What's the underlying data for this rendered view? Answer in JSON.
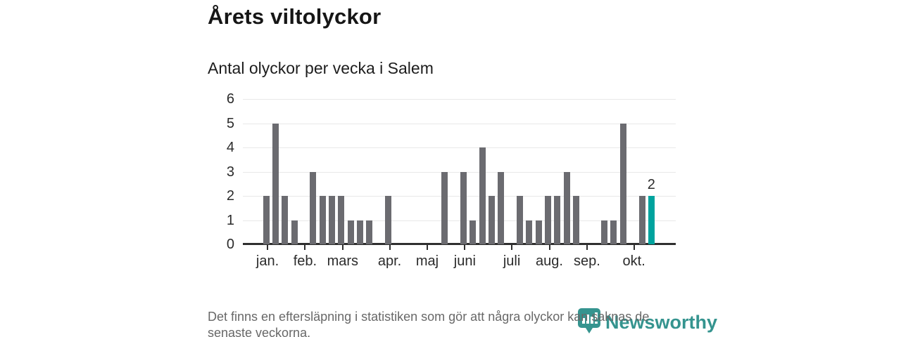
{
  "header": {
    "title": "Årets viltolyckor",
    "subtitle": "Antal olyckor per vecka i Salem"
  },
  "chart_data": {
    "type": "bar",
    "title": "Årets viltolyckor",
    "subtitle": "Antal olyckor per vecka i Salem",
    "x_unit": "vecka",
    "values": [
      2,
      5,
      2,
      1,
      0,
      3,
      2,
      2,
      2,
      1,
      1,
      1,
      0,
      2,
      0,
      0,
      0,
      0,
      0,
      3,
      0,
      3,
      1,
      4,
      2,
      3,
      0,
      2,
      1,
      1,
      2,
      2,
      3,
      2,
      0,
      0,
      1,
      1,
      5,
      0,
      2,
      2
    ],
    "weeks_shown": 42,
    "y_ticks": [
      0,
      1,
      2,
      3,
      4,
      5,
      6
    ],
    "ylim": [
      0,
      6
    ],
    "grid": true,
    "legend": "none",
    "months": [
      {
        "label": "jan.",
        "week": 1
      },
      {
        "label": "feb.",
        "week": 5
      },
      {
        "label": "mars",
        "week": 9
      },
      {
        "label": "apr.",
        "week": 14
      },
      {
        "label": "maj",
        "week": 18
      },
      {
        "label": "juni",
        "week": 22
      },
      {
        "label": "juli",
        "week": 27
      },
      {
        "label": "aug.",
        "week": 31
      },
      {
        "label": "sep.",
        "week": 35
      },
      {
        "label": "okt.",
        "week": 40
      }
    ],
    "highlight_last_bar": true,
    "last_bar_label": "2",
    "colors": {
      "bar": "#6b6b70",
      "highlight": "#00a39e",
      "grid": "#e8e8e8",
      "axis": "#2f2f2f"
    }
  },
  "footer": {
    "note": "Det finns en eftersläpning i statistiken som gör att några olyckor kan saknas de senaste veckorna."
  },
  "logo": {
    "text": "Newsworthy",
    "color": "#35948f"
  }
}
